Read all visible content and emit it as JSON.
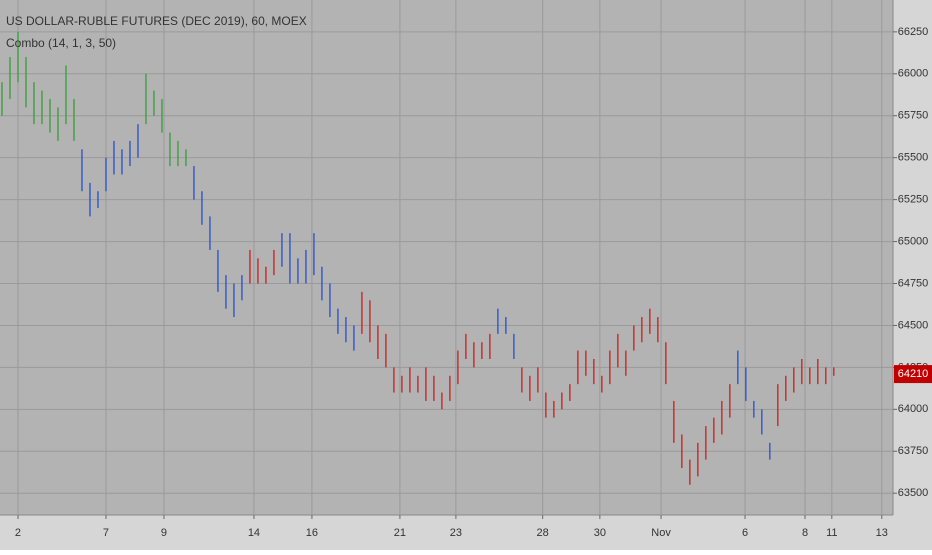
{
  "chart_data": {
    "type": "ohlc",
    "title": "US DOLLAR-RUBLE FUTURES (DEC 2019), 60, MOEX",
    "subtitle": "Combo (14, 1, 3, 50)",
    "high": [
      65950,
      66100,
      66250,
      66100,
      65950,
      65900,
      65850,
      65800,
      66050,
      65850,
      65550,
      65350,
      65300,
      65500,
      65600,
      65550,
      65600,
      65700,
      66000,
      65900,
      65850,
      65650,
      65600,
      65550,
      65450,
      65300,
      65150,
      64950,
      64800,
      64750,
      64800,
      64950,
      64900,
      64850,
      64950,
      65050,
      65050,
      64900,
      64950,
      65050,
      64850,
      64750,
      64600,
      64550,
      64500,
      64700,
      64650,
      64500,
      64450,
      64250,
      64200,
      64250,
      64200,
      64250,
      64200,
      64100,
      64200,
      64350,
      64450,
      64400,
      64400,
      64450,
      64600,
      64550,
      64450,
      64250,
      64200,
      64250,
      64100,
      64050,
      64100,
      64150,
      64350,
      64350,
      64300,
      64200,
      64350,
      64450,
      64350,
      64500,
      64550,
      64600,
      64550,
      64400,
      64050,
      63850,
      63700,
      63800,
      63900,
      63950,
      64050,
      64150,
      64350,
      64250,
      64050,
      64000,
      63800,
      64150,
      64200,
      64250,
      64300,
      64250,
      64300,
      64250,
      64250
    ],
    "low": [
      65750,
      65850,
      65950,
      65800,
      65700,
      65700,
      65650,
      65600,
      65700,
      65600,
      65300,
      65150,
      65200,
      65300,
      65400,
      65400,
      65450,
      65500,
      65700,
      65750,
      65650,
      65450,
      65450,
      65450,
      65250,
      65100,
      64950,
      64700,
      64600,
      64550,
      64650,
      64750,
      64750,
      64750,
      64800,
      64850,
      64750,
      64750,
      64750,
      64800,
      64650,
      64550,
      64450,
      64400,
      64350,
      64450,
      64400,
      64300,
      64250,
      64100,
      64100,
      64100,
      64100,
      64050,
      64050,
      64000,
      64050,
      64150,
      64300,
      64250,
      64300,
      64300,
      64450,
      64450,
      64300,
      64100,
      64050,
      64100,
      63950,
      63950,
      64000,
      64050,
      64150,
      64200,
      64150,
      64100,
      64150,
      64250,
      64200,
      64350,
      64400,
      64450,
      64400,
      64150,
      63800,
      63650,
      63550,
      63600,
      63700,
      63800,
      63850,
      63950,
      64150,
      64050,
      63950,
      63850,
      63700,
      63900,
      64050,
      64100,
      64150,
      64150,
      64150,
      64150,
      64200
    ],
    "colors": [
      "#3f9f3f",
      "#3f9f3f",
      "#3f9f3f",
      "#3f9f3f",
      "#3f9f3f",
      "#3f9f3f",
      "#3f9f3f",
      "#3f9f3f",
      "#3f9f3f",
      "#3f9f3f",
      "#2f56c8",
      "#2f56c8",
      "#2f56c8",
      "#2f56c8",
      "#2f56c8",
      "#2f56c8",
      "#2f56c8",
      "#2f56c8",
      "#3f9f3f",
      "#3f9f3f",
      "#3f9f3f",
      "#3f9f3f",
      "#3f9f3f",
      "#3f9f3f",
      "#2f56c8",
      "#2f56c8",
      "#2f56c8",
      "#2f56c8",
      "#2f56c8",
      "#2f56c8",
      "#2f56c8",
      "#c62828",
      "#c62828",
      "#c62828",
      "#c62828",
      "#2f56c8",
      "#2f56c8",
      "#2f56c8",
      "#2f56c8",
      "#2f56c8",
      "#2f56c8",
      "#2f56c8",
      "#2f56c8",
      "#2f56c8",
      "#2f56c8",
      "#c62828",
      "#c62828",
      "#c62828",
      "#c62828",
      "#c62828",
      "#c62828",
      "#c62828",
      "#c62828",
      "#c62828",
      "#c62828",
      "#c62828",
      "#c62828",
      "#c62828",
      "#c62828",
      "#c62828",
      "#c62828",
      "#c62828",
      "#2f56c8",
      "#2f56c8",
      "#2f56c8",
      "#c62828",
      "#c62828",
      "#c62828",
      "#c62828",
      "#c62828",
      "#c62828",
      "#c62828",
      "#c62828",
      "#c62828",
      "#c62828",
      "#c62828",
      "#c62828",
      "#c62828",
      "#c62828",
      "#c62828",
      "#c62828",
      "#c62828",
      "#c62828",
      "#c62828",
      "#c62828",
      "#c62828",
      "#c62828",
      "#c62828",
      "#c62828",
      "#c62828",
      "#c62828",
      "#c62828",
      "#2f56c8",
      "#2f56c8",
      "#2f56c8",
      "#2f56c8",
      "#2f56c8",
      "#c62828",
      "#c62828",
      "#c62828",
      "#c62828",
      "#c62828",
      "#c62828",
      "#c62828",
      "#c62828"
    ],
    "xlim": [
      -0.25,
      111.4
    ],
    "xticks": [
      {
        "value": 2,
        "label": "2"
      },
      {
        "value": 13,
        "label": "7"
      },
      {
        "value": 20.25,
        "label": "9"
      },
      {
        "value": 31.5,
        "label": "14"
      },
      {
        "value": 38.75,
        "label": "16"
      },
      {
        "value": 49.75,
        "label": "21"
      },
      {
        "value": 56.75,
        "label": "23"
      },
      {
        "value": 67.6,
        "label": "28"
      },
      {
        "value": 74.75,
        "label": "30"
      },
      {
        "value": 82.4,
        "label": "Nov"
      },
      {
        "value": 92.9,
        "label": "6"
      },
      {
        "value": 100.4,
        "label": "8"
      },
      {
        "value": 103.75,
        "label": "11"
      },
      {
        "value": 110,
        "label": "13"
      }
    ],
    "ylim": [
      63370,
      66440
    ],
    "yticks": [
      63500,
      63750,
      64000,
      64250,
      64500,
      64750,
      65000,
      65250,
      65500,
      65750,
      66000,
      66250
    ],
    "last_price": 64210,
    "last_price_color": "#c00000",
    "grid": true
  }
}
